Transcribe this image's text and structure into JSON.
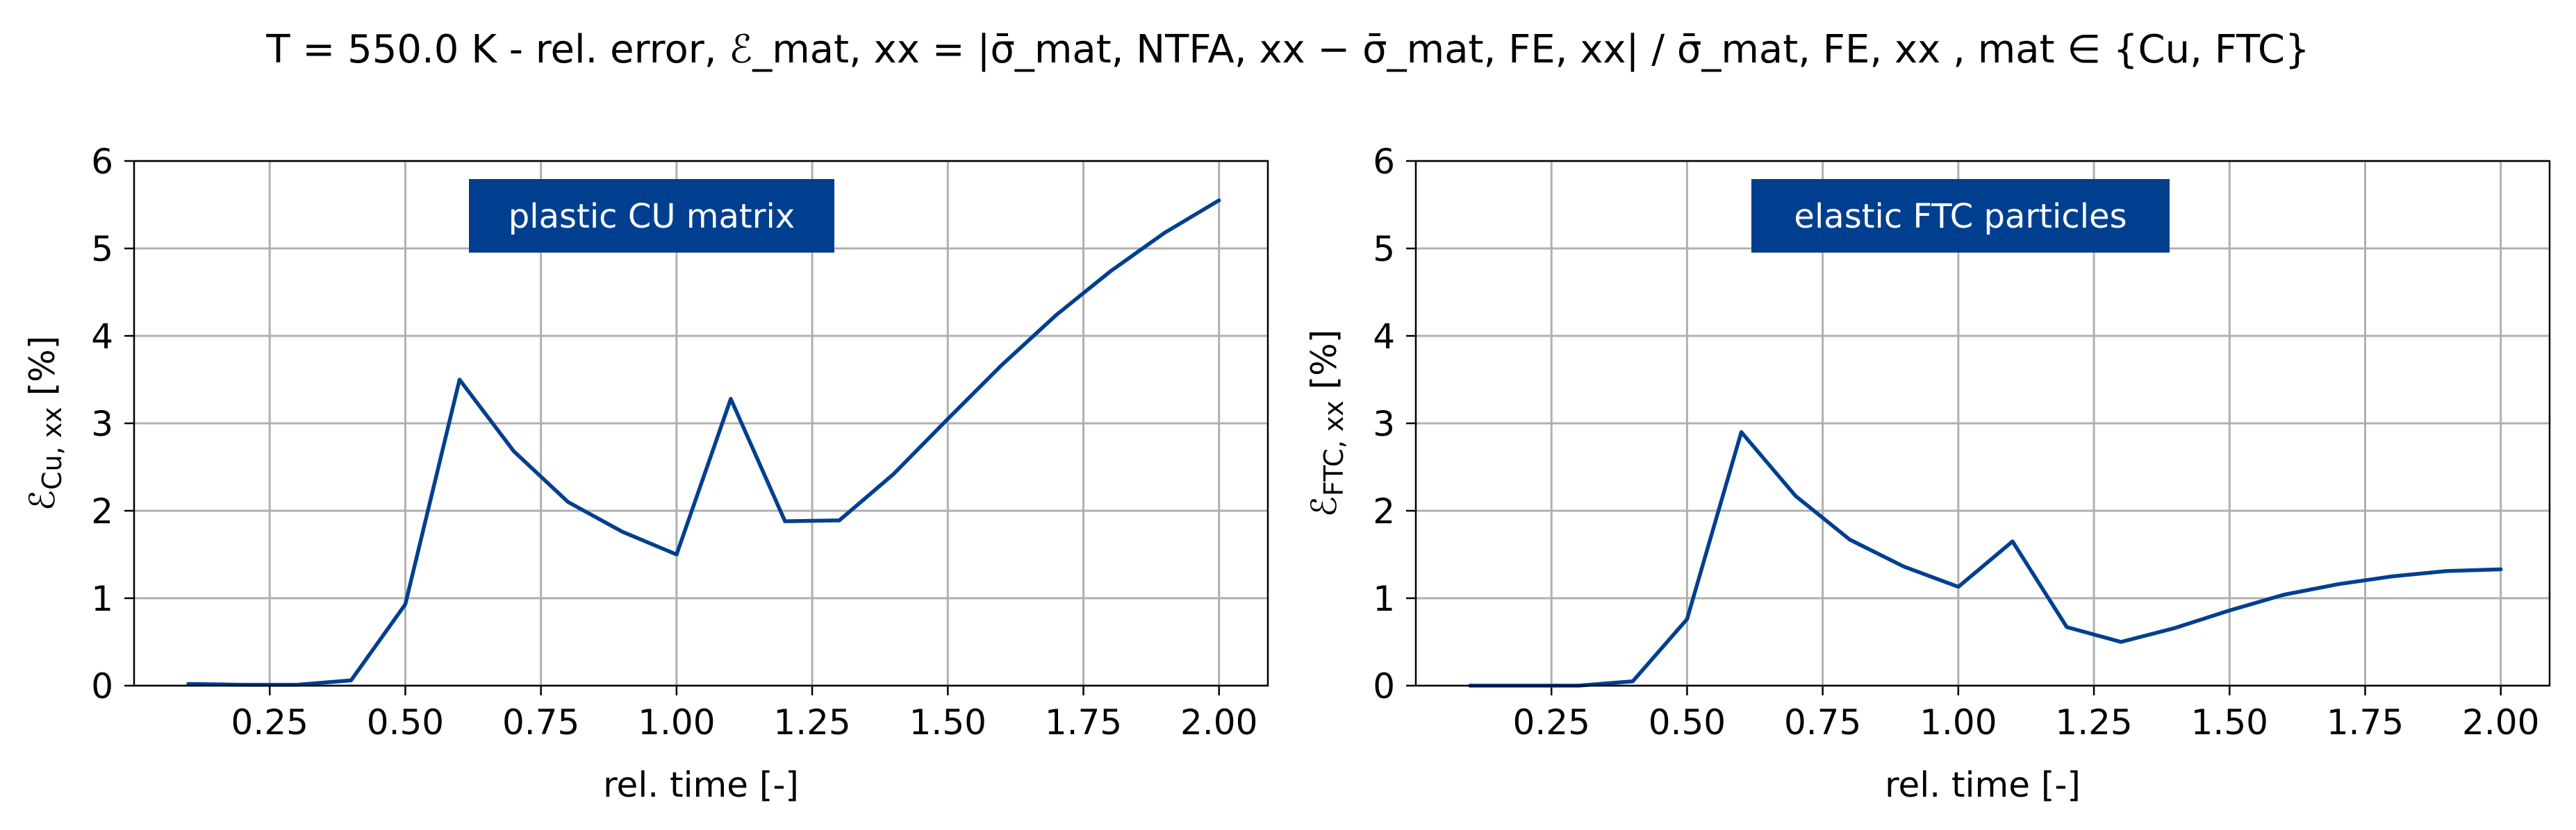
{
  "figure_title": {
    "lead": "T = 550.0 K - rel. error,",
    "formula": "ℰ_mat, xx = |σ̄_mat, NTFA, xx − σ̄_mat, FE, xx| / σ̄_mat, FE, xx",
    "tail": ", mat ∈ {Cu, FTC}"
  },
  "colors": {
    "line": "#003f8f",
    "label_box": "#003f8f",
    "grid": "#b0b0b0"
  },
  "chart_data": [
    {
      "type": "line",
      "annotation": "plastic CU matrix",
      "xlabel": "rel. time [-]",
      "ylabel": "ℰCu, xx [%]",
      "ylabel_symbol": "ℰ",
      "ylabel_subscript": "Cu, xx",
      "ylabel_unit": "[%]",
      "xlim": [
        0.0,
        2.09
      ],
      "ylim": [
        0,
        6
      ],
      "xticks": [
        "0.25",
        "0.50",
        "0.75",
        "1.00",
        "1.25",
        "1.50",
        "1.75",
        "2.00"
      ],
      "yticks": [
        "0",
        "1",
        "2",
        "3",
        "4",
        "5",
        "6"
      ],
      "grid": true,
      "series": [
        {
          "x": [
            0.1,
            0.2,
            0.3,
            0.4,
            0.5,
            0.6,
            0.7,
            0.8,
            0.9,
            1.0,
            1.1,
            1.2,
            1.3,
            1.4,
            1.5,
            1.6,
            1.7,
            1.8,
            1.9,
            2.0
          ],
          "y": [
            0.02,
            0.01,
            0.01,
            0.06,
            0.93,
            3.5,
            2.68,
            2.1,
            1.76,
            1.5,
            3.28,
            1.88,
            1.89,
            2.42,
            3.05,
            3.67,
            4.24,
            4.74,
            5.18,
            5.55
          ]
        }
      ]
    },
    {
      "type": "line",
      "annotation": "elastic FTC particles",
      "xlabel": "rel. time [-]",
      "ylabel": "ℰFTC, xx [%]",
      "ylabel_symbol": "ℰ",
      "ylabel_subscript": "FTC, xx",
      "ylabel_unit": "[%]",
      "xlim": [
        0.0,
        2.09
      ],
      "ylim": [
        0,
        6
      ],
      "xticks": [
        "0.25",
        "0.50",
        "0.75",
        "1.00",
        "1.25",
        "1.50",
        "1.75",
        "2.00"
      ],
      "yticks": [
        "0",
        "1",
        "2",
        "3",
        "4",
        "5",
        "6"
      ],
      "grid": true,
      "series": [
        {
          "x": [
            0.1,
            0.2,
            0.3,
            0.4,
            0.5,
            0.6,
            0.7,
            0.8,
            0.9,
            1.0,
            1.1,
            1.2,
            1.3,
            1.4,
            1.5,
            1.6,
            1.7,
            1.8,
            1.9,
            2.0
          ],
          "y": [
            0.0,
            0.0,
            0.0,
            0.05,
            0.76,
            2.9,
            2.17,
            1.67,
            1.36,
            1.13,
            1.65,
            0.67,
            0.5,
            0.66,
            0.86,
            1.04,
            1.16,
            1.25,
            1.31,
            1.33
          ]
        }
      ]
    }
  ]
}
